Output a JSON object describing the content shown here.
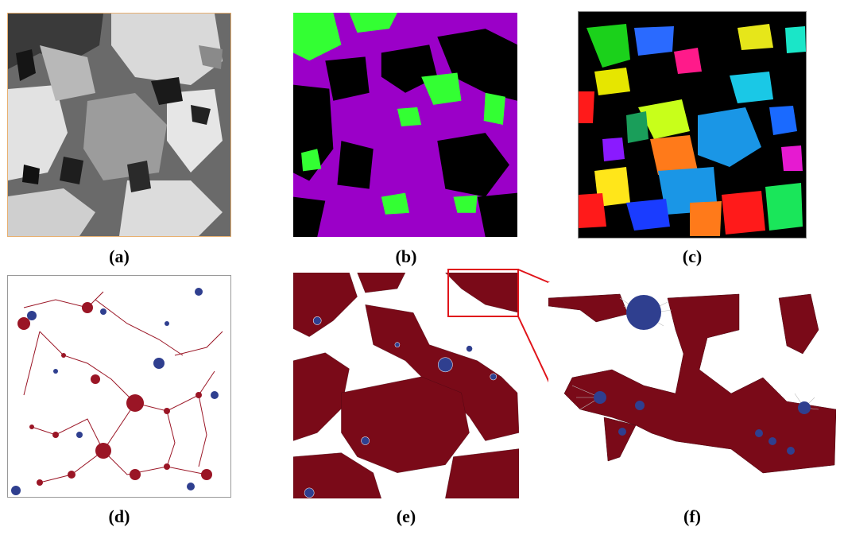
{
  "figure": {
    "panels": [
      {
        "id": "a",
        "caption": "(a)"
      },
      {
        "id": "b",
        "caption": "(b)"
      },
      {
        "id": "c",
        "caption": "(c)"
      },
      {
        "id": "d",
        "caption": "(d)"
      },
      {
        "id": "e",
        "caption": "(e)"
      },
      {
        "id": "f",
        "caption": "(f)"
      }
    ],
    "colors": {
      "pore_phase": "#9b00c8",
      "second_phase": "#33ff33",
      "solid": "#000000",
      "pore_node": "#9a1525",
      "throat_node": "#2f3f8f",
      "mesh": "#7a0a18",
      "zoom_box": "#e0141a"
    }
  }
}
